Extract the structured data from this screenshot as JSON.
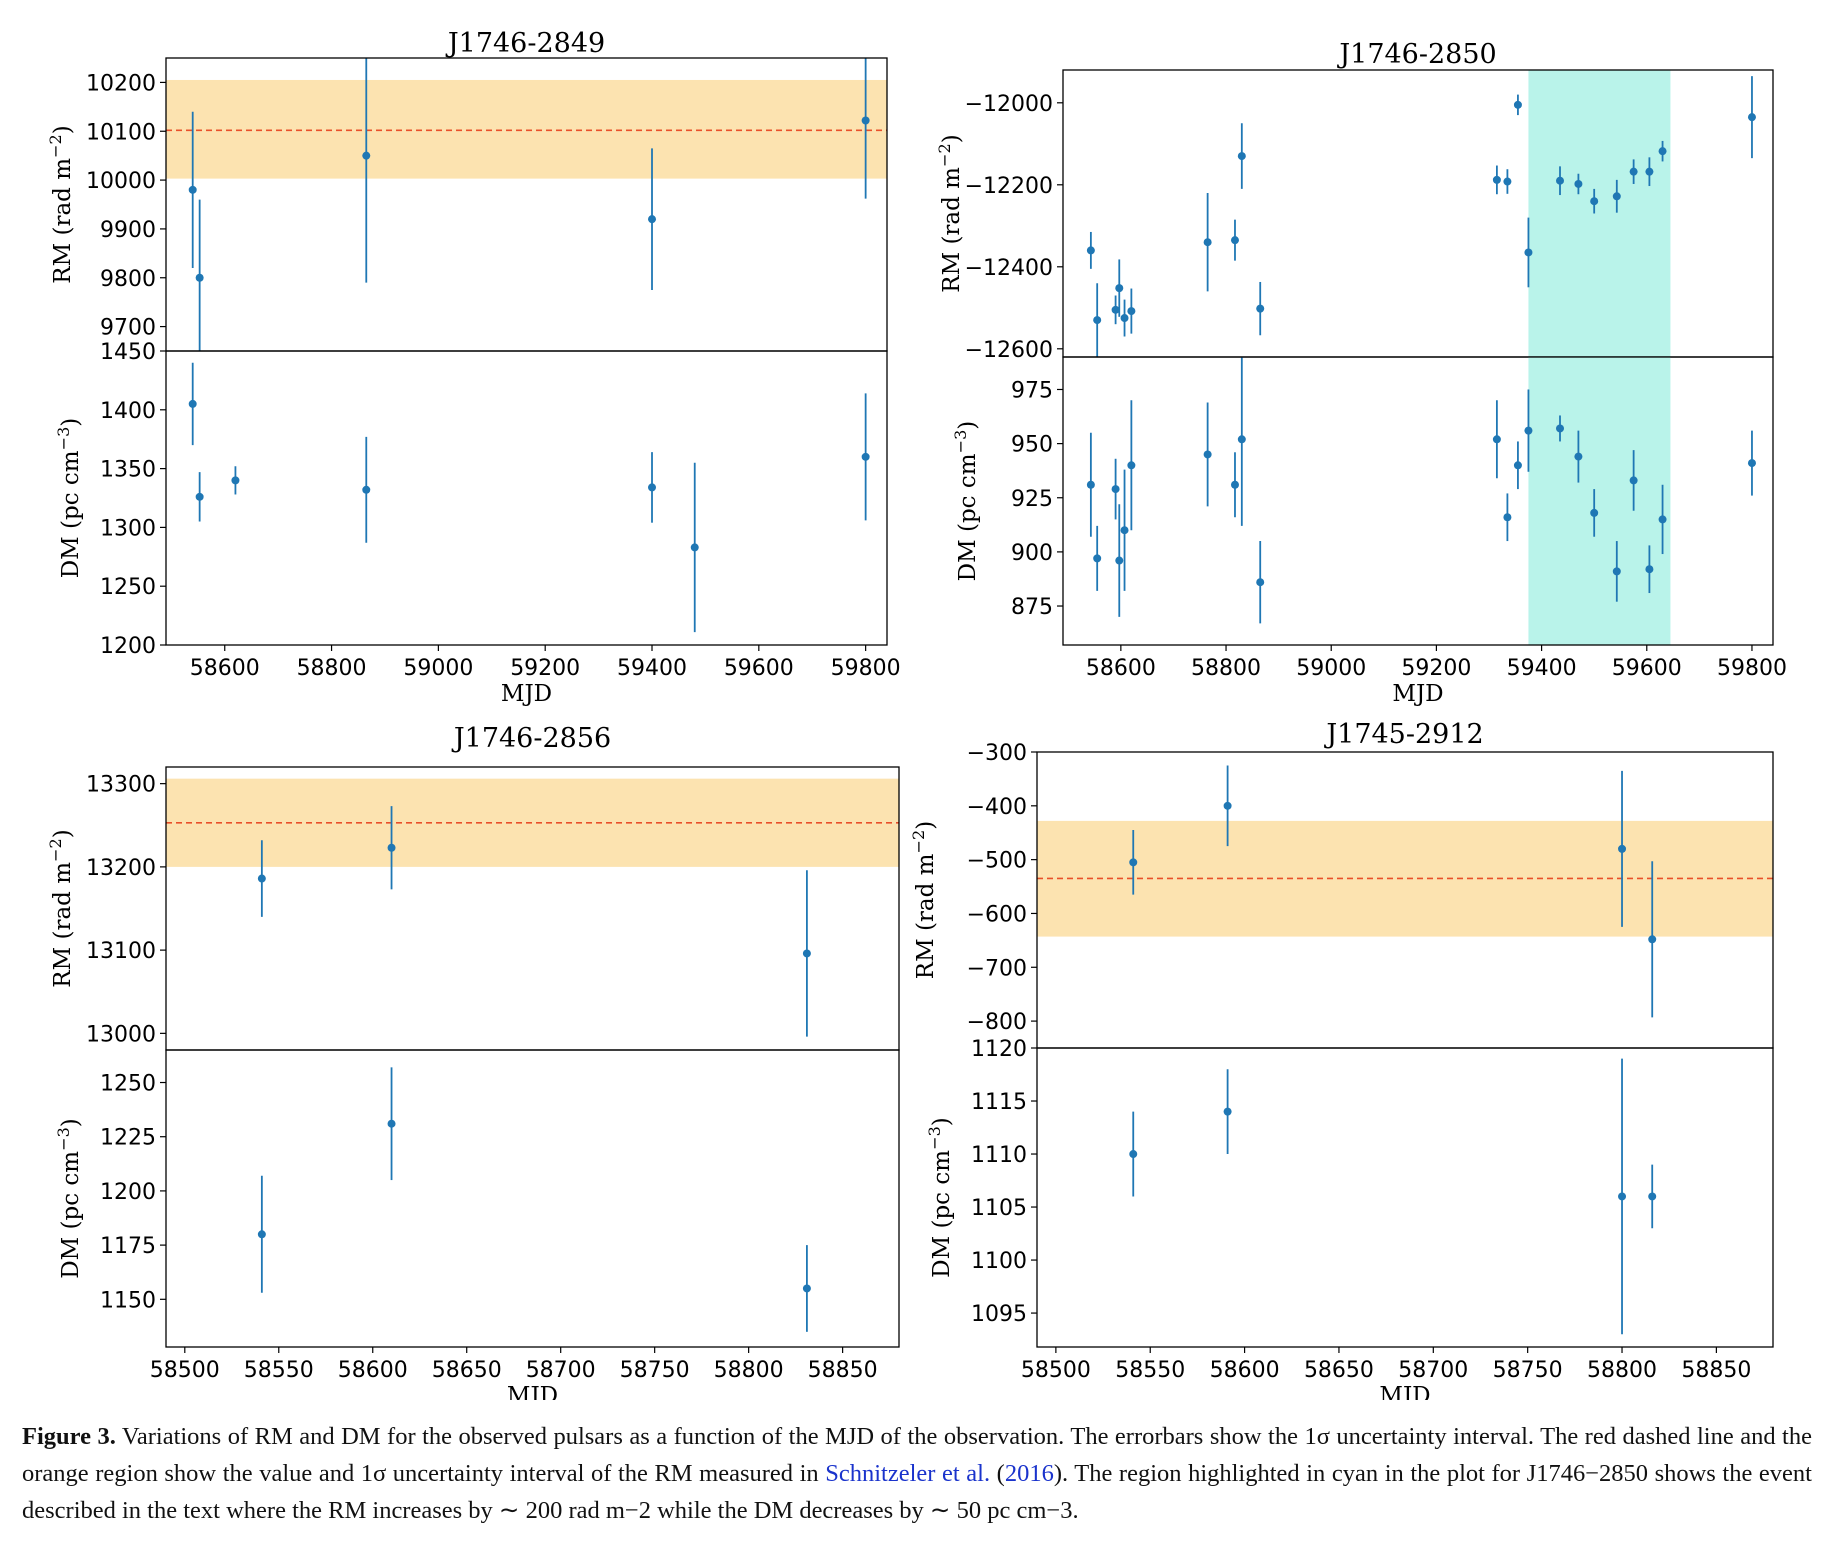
{
  "colors": {
    "marker": "#1f77b4",
    "band": "#fce3b0",
    "ref_line": "#e8502a",
    "event": "#b9f3ea"
  },
  "chart_data": [
    {
      "type": "scatter",
      "title": "J1746-2849",
      "xlabel": "MJD",
      "xlim": [
        58490,
        59840
      ],
      "xticks": [
        58600,
        58800,
        59000,
        59200,
        59400,
        59600,
        59800
      ],
      "rm": {
        "ylabel": "RM (rad m$^{-2}$)",
        "ylim": [
          9650,
          10250
        ],
        "yticks": [
          9700,
          9800,
          9900,
          10000,
          10100,
          10200
        ],
        "ref": 10102,
        "band": [
          10003,
          10205
        ],
        "points": [
          {
            "x": 58540,
            "y": 9980,
            "err": 160
          },
          {
            "x": 58553,
            "y": 9800,
            "err": 160
          },
          {
            "x": 58865,
            "y": 10050,
            "err": 260
          },
          {
            "x": 59400,
            "y": 9920,
            "err": 145
          },
          {
            "x": 59800,
            "y": 10122,
            "err": 160
          }
        ]
      },
      "dm": {
        "ylabel": "DM (pc cm$^{-3}$)",
        "ylim": [
          1200,
          1450
        ],
        "yticks": [
          1200,
          1250,
          1300,
          1350,
          1400,
          1450
        ],
        "points": [
          {
            "x": 58540,
            "y": 1405,
            "err": 35
          },
          {
            "x": 58553,
            "y": 1326,
            "err": 21
          },
          {
            "x": 58620,
            "y": 1340,
            "err": 12
          },
          {
            "x": 58865,
            "y": 1332,
            "err": 45
          },
          {
            "x": 59400,
            "y": 1334,
            "err": 30
          },
          {
            "x": 59480,
            "y": 1283,
            "err": 72
          },
          {
            "x": 59800,
            "y": 1360,
            "err": 54
          }
        ]
      }
    },
    {
      "type": "scatter",
      "title": "J1746-2850",
      "xlabel": "MJD",
      "xlim": [
        58490,
        59840
      ],
      "xticks": [
        58600,
        58800,
        59000,
        59200,
        59400,
        59600,
        59800
      ],
      "event": [
        59375,
        59645
      ],
      "rm": {
        "ylabel": "RM (rad m$^{-2}$)",
        "ylim": [
          -12620,
          -11920
        ],
        "yticks": [
          -12600,
          -12400,
          -12200,
          -12000
        ],
        "points": [
          {
            "x": 58543,
            "y": -12360,
            "err": 45
          },
          {
            "x": 58555,
            "y": -12530,
            "err": 90
          },
          {
            "x": 58590,
            "y": -12505,
            "err": 35
          },
          {
            "x": 58597,
            "y": -12452,
            "err": 70
          },
          {
            "x": 58607,
            "y": -12525,
            "err": 45
          },
          {
            "x": 58620,
            "y": -12508,
            "err": 55
          },
          {
            "x": 58765,
            "y": -12340,
            "err": 120
          },
          {
            "x": 58817,
            "y": -12335,
            "err": 50
          },
          {
            "x": 58830,
            "y": -12130,
            "err": 80
          },
          {
            "x": 58865,
            "y": -12502,
            "err": 65
          },
          {
            "x": 59315,
            "y": -12188,
            "err": 35
          },
          {
            "x": 59335,
            "y": -12192,
            "err": 30
          },
          {
            "x": 59355,
            "y": -12005,
            "err": 25
          },
          {
            "x": 59375,
            "y": -12365,
            "err": 85
          },
          {
            "x": 59435,
            "y": -12190,
            "err": 35
          },
          {
            "x": 59470,
            "y": -12198,
            "err": 25
          },
          {
            "x": 59500,
            "y": -12240,
            "err": 30
          },
          {
            "x": 59543,
            "y": -12228,
            "err": 40
          },
          {
            "x": 59575,
            "y": -12168,
            "err": 30
          },
          {
            "x": 59605,
            "y": -12168,
            "err": 35
          },
          {
            "x": 59630,
            "y": -12118,
            "err": 25
          },
          {
            "x": 59800,
            "y": -12035,
            "err": 100
          }
        ]
      },
      "dm": {
        "ylabel": "DM (pc cm$^{-3}$)",
        "ylim": [
          857,
          990
        ],
        "yticks": [
          875,
          900,
          925,
          950,
          975
        ],
        "points": [
          {
            "x": 58543,
            "y": 931,
            "err": 24
          },
          {
            "x": 58555,
            "y": 897,
            "err": 15
          },
          {
            "x": 58590,
            "y": 929,
            "err": 14
          },
          {
            "x": 58597,
            "y": 896,
            "err": 26
          },
          {
            "x": 58607,
            "y": 910,
            "err": 28
          },
          {
            "x": 58620,
            "y": 940,
            "err": 30
          },
          {
            "x": 58765,
            "y": 945,
            "err": 24
          },
          {
            "x": 58817,
            "y": 931,
            "err": 15
          },
          {
            "x": 58830,
            "y": 952,
            "err": 40
          },
          {
            "x": 58865,
            "y": 886,
            "err": 19
          },
          {
            "x": 59315,
            "y": 952,
            "err": 18
          },
          {
            "x": 59335,
            "y": 916,
            "err": 11
          },
          {
            "x": 59355,
            "y": 940,
            "err": 11
          },
          {
            "x": 59375,
            "y": 956,
            "err": 19
          },
          {
            "x": 59435,
            "y": 957,
            "err": 6
          },
          {
            "x": 59470,
            "y": 944,
            "err": 12
          },
          {
            "x": 59500,
            "y": 918,
            "err": 11
          },
          {
            "x": 59543,
            "y": 891,
            "err": 14
          },
          {
            "x": 59575,
            "y": 933,
            "err": 14
          },
          {
            "x": 59605,
            "y": 892,
            "err": 11
          },
          {
            "x": 59630,
            "y": 915,
            "err": 16
          },
          {
            "x": 59800,
            "y": 941,
            "err": 15
          }
        ]
      }
    },
    {
      "type": "scatter",
      "title": "J1746-2856",
      "xlabel": "MJD",
      "xlim": [
        58490,
        58880
      ],
      "xticks": [
        58500,
        58550,
        58600,
        58650,
        58700,
        58750,
        58800,
        58850
      ],
      "rm": {
        "ylabel": "RM (rad m$^{-2}$)",
        "ylim": [
          12980,
          13320
        ],
        "yticks": [
          13000,
          13100,
          13200,
          13300
        ],
        "ref": 13253,
        "band": [
          13200,
          13306
        ],
        "points": [
          {
            "x": 58541,
            "y": 13186,
            "err": 46
          },
          {
            "x": 58610,
            "y": 13223,
            "err": 50
          },
          {
            "x": 58831,
            "y": 13096,
            "err": 100
          }
        ]
      },
      "dm": {
        "ylabel": "DM (pc cm$^{-3}$)",
        "ylim": [
          1128,
          1265
        ],
        "yticks": [
          1150,
          1175,
          1200,
          1225,
          1250
        ],
        "points": [
          {
            "x": 58541,
            "y": 1180,
            "err": 27
          },
          {
            "x": 58610,
            "y": 1231,
            "err": 26
          },
          {
            "x": 58831,
            "y": 1155,
            "err": 20
          }
        ]
      }
    },
    {
      "type": "scatter",
      "title": "J1745-2912",
      "xlabel": "MJD",
      "xlim": [
        58490,
        58880
      ],
      "xticks": [
        58500,
        58550,
        58600,
        58650,
        58700,
        58750,
        58800,
        58850
      ],
      "rm": {
        "ylabel": "RM (rad m$^{-2}$)",
        "ylim": [
          -850,
          -300
        ],
        "yticks": [
          -800,
          -700,
          -600,
          -500,
          -400,
          -300
        ],
        "ref": -535,
        "band": [
          -643,
          -428
        ],
        "points": [
          {
            "x": 58541,
            "y": -505,
            "err": 60
          },
          {
            "x": 58591,
            "y": -400,
            "err": 75
          },
          {
            "x": 58800,
            "y": -480,
            "err": 145
          },
          {
            "x": 58816,
            "y": -648,
            "err": 145
          }
        ]
      },
      "dm": {
        "ylabel": "DM (pc cm$^{-3}$)",
        "ylim": [
          1091.8,
          1120
        ],
        "yticks": [
          1095,
          1100,
          1105,
          1110,
          1115,
          1120
        ],
        "points": [
          {
            "x": 58541,
            "y": 1110,
            "err": 4
          },
          {
            "x": 58591,
            "y": 1114,
            "err": 4
          },
          {
            "x": 58800,
            "y": 1106,
            "err": 13
          },
          {
            "x": 58816,
            "y": 1106,
            "err": 3
          }
        ]
      }
    }
  ],
  "caption": {
    "label": "Figure 3.",
    "part1": " Variations of RM and DM for the observed pulsars as a function of the MJD of the observation. The errorbars show the 1σ uncertainty interval. The red dashed line and the orange region show the value and 1σ uncertainty interval of the RM measured in ",
    "ref_name": "Schnitzeler et al.",
    "ref_year": "2016",
    "part2": "). The region highlighted in cyan in the plot for J1746−2850 shows the event described in the text where the RM increases by ∼ 200 rad m−2 while the DM decreases by ∼ 50 pc cm−3."
  }
}
